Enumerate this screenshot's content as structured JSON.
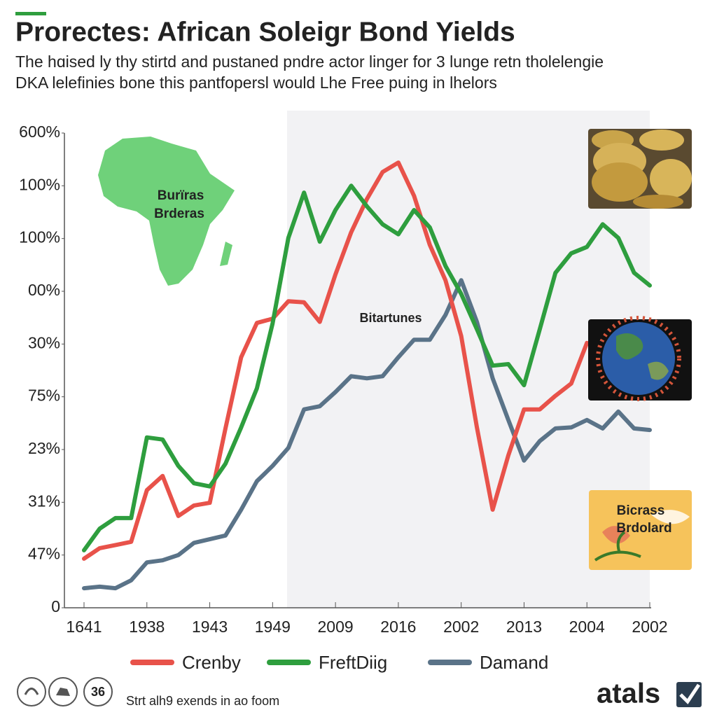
{
  "chart_data": {
    "type": "line",
    "title": "Prorectes: African Soleigr Bond Yields",
    "subtitle": [
      "The hɑised ly thy stirtd and pustaned pndre actor linger for 3 lunge retn tholelengie",
      "DKA lelefinies bone this pantfopersl would Lhe Free puing in lhelors"
    ],
    "annotations": [
      "Burïras",
      "Brderas",
      "Bitartunes",
      "Bicrass",
      "Brdolard"
    ],
    "categories": [
      "1641",
      null,
      null,
      null,
      "1938",
      null,
      null,
      null,
      "1943",
      null,
      null,
      null,
      "1949",
      null,
      null,
      null,
      "2009",
      null,
      null,
      null,
      "2016",
      null,
      null,
      null,
      "2002",
      null,
      null,
      null,
      "2013",
      null,
      null,
      null,
      "2004",
      null,
      null,
      null,
      "2002"
    ],
    "series": [
      {
        "name": "Crenby",
        "color": "#e8524a",
        "values": [
          0.93,
          1.13,
          1.19,
          1.25,
          2.23,
          2.5,
          1.74,
          1.94,
          1.99,
          3.4,
          4.75,
          5.4,
          5.48,
          5.81,
          5.79,
          5.42,
          6.32,
          7.12,
          7.75,
          8.26,
          8.44,
          7.81,
          6.88,
          6.21,
          5.15,
          3.42,
          1.86,
          2.89,
          3.76,
          3.76,
          4.02,
          4.25,
          5.02,
          null,
          null,
          null,
          null
        ]
      },
      {
        "name": "FreftDiig",
        "color": "#2e9e3e",
        "values": [
          1.09,
          1.5,
          1.7,
          1.7,
          3.23,
          3.19,
          2.69,
          2.36,
          2.3,
          2.73,
          3.42,
          4.16,
          5.39,
          7.01,
          7.87,
          6.94,
          7.54,
          8.0,
          7.61,
          7.27,
          7.08,
          7.54,
          7.21,
          6.48,
          5.95,
          5.28,
          4.59,
          4.62,
          4.22,
          5.28,
          6.35,
          6.72,
          6.84,
          7.27,
          7.01,
          6.35,
          6.11
        ]
      },
      {
        "name": "Damand",
        "color": "#5a7388",
        "values": [
          0.37,
          0.4,
          0.37,
          0.52,
          0.86,
          0.9,
          1.0,
          1.23,
          1.3,
          1.37,
          1.86,
          2.4,
          2.69,
          3.03,
          3.76,
          3.82,
          4.09,
          4.39,
          4.35,
          4.39,
          4.75,
          5.08,
          5.08,
          5.55,
          6.21,
          5.42,
          4.35,
          3.56,
          2.79,
          3.16,
          3.4,
          3.42,
          3.56,
          3.4,
          3.72,
          3.4,
          3.37
        ]
      }
    ],
    "ylim": [
      0,
      9
    ],
    "yticks": [
      0,
      {
        "value": 1,
        "label": "47%"
      },
      {
        "value": 2,
        "label": "31%"
      },
      {
        "value": 3,
        "label": "23%"
      },
      {
        "value": 4,
        "label": "75%"
      },
      {
        "value": 5,
        "label": "30%"
      },
      {
        "value": 6,
        "label": "00%"
      },
      {
        "value": 7,
        "label": "100%"
      },
      {
        "value": 8,
        "label": "100%"
      },
      {
        "value": 9,
        "label": "600%"
      }
    ],
    "grid": false,
    "legend": "bottom"
  },
  "footer": {
    "badge": "36",
    "note": "Strt alh9 exends in ao foom",
    "logo": "atals"
  }
}
